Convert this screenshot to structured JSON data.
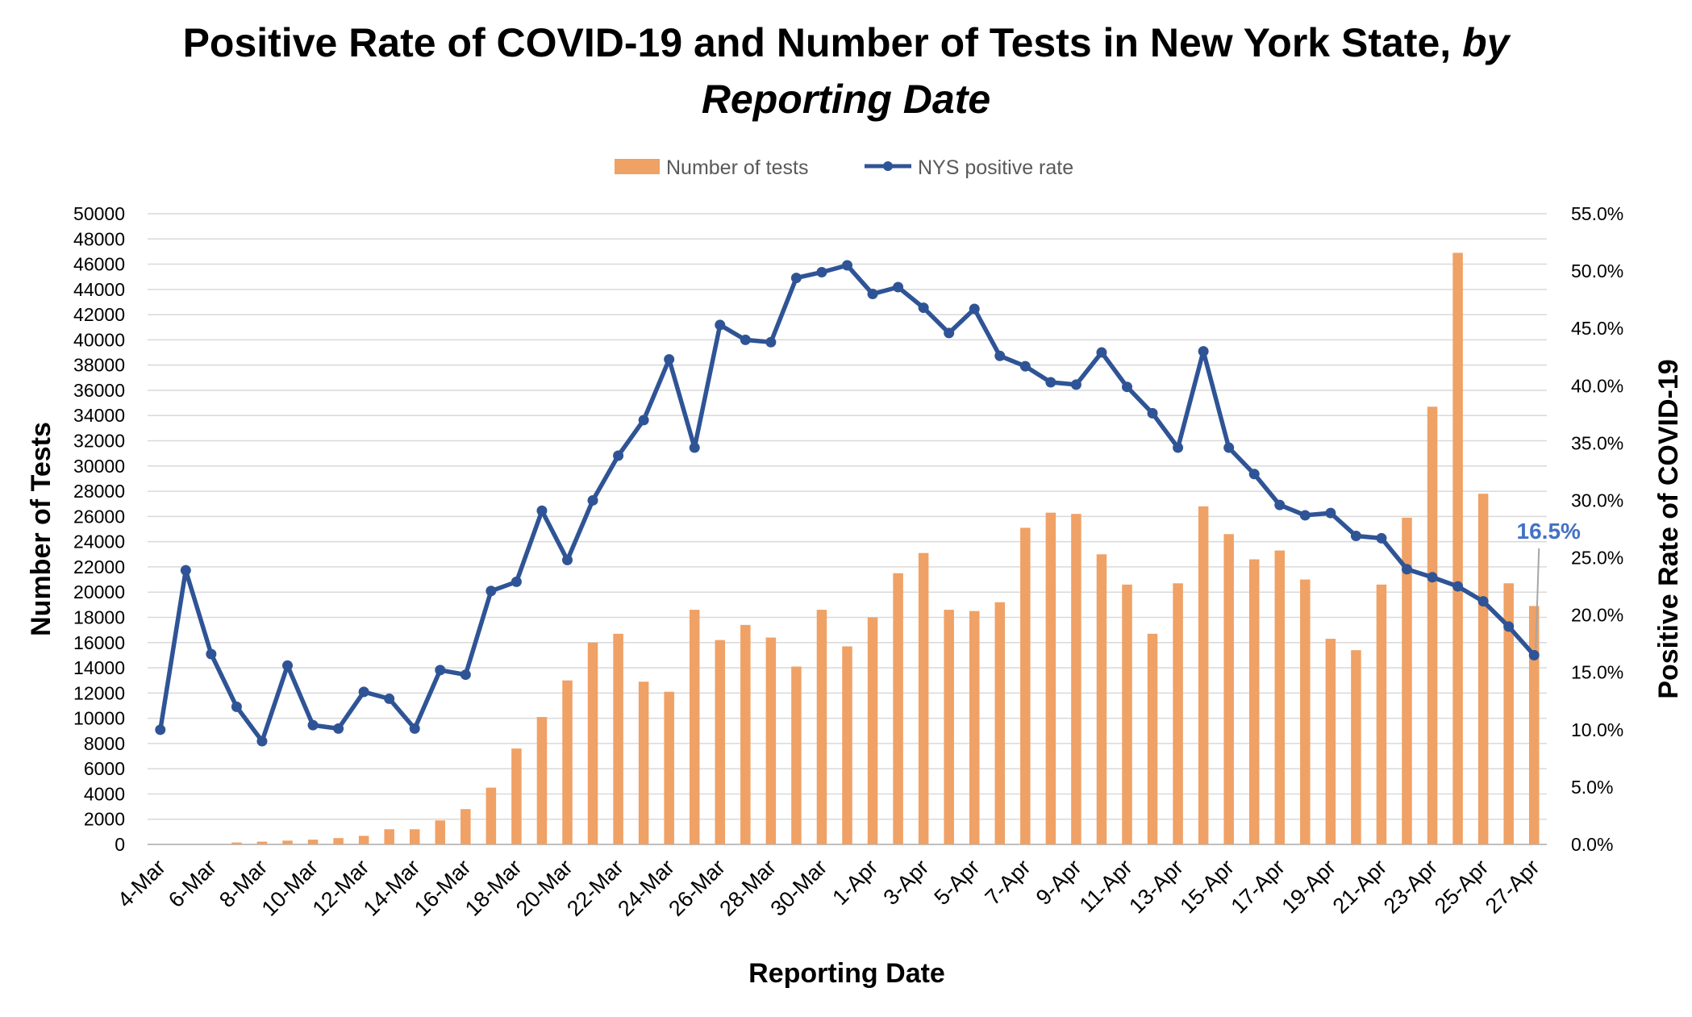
{
  "chart_data": {
    "type": "bar+line",
    "title_main": "Positive Rate of COVID-19 and Number of Tests in New York State,",
    "title_italic_1": "by",
    "title_italic_2": "Reporting Date",
    "xlabel": "Reporting Date",
    "ylabel_left": "Number of Tests",
    "ylabel_right": "Positive Rate of COVID-19",
    "ylim_left": [
      0,
      50000
    ],
    "ylim_right": [
      0,
      55
    ],
    "left_ticks": [
      "0",
      "2000",
      "4000",
      "6000",
      "8000",
      "10000",
      "12000",
      "14000",
      "16000",
      "18000",
      "20000",
      "22000",
      "24000",
      "26000",
      "28000",
      "30000",
      "32000",
      "34000",
      "36000",
      "38000",
      "40000",
      "42000",
      "44000",
      "46000",
      "48000",
      "50000"
    ],
    "right_ticks": [
      "0.0%",
      "5.0%",
      "10.0%",
      "15.0%",
      "20.0%",
      "25.0%",
      "30.0%",
      "35.0%",
      "40.0%",
      "45.0%",
      "50.0%",
      "55.0%"
    ],
    "categories": [
      "4-Mar",
      "5-Mar",
      "6-Mar",
      "7-Mar",
      "8-Mar",
      "9-Mar",
      "10-Mar",
      "11-Mar",
      "12-Mar",
      "13-Mar",
      "14-Mar",
      "15-Mar",
      "16-Mar",
      "17-Mar",
      "18-Mar",
      "19-Mar",
      "20-Mar",
      "21-Mar",
      "22-Mar",
      "23-Mar",
      "24-Mar",
      "25-Mar",
      "26-Mar",
      "27-Mar",
      "28-Mar",
      "29-Mar",
      "30-Mar",
      "31-Mar",
      "1-Apr",
      "2-Apr",
      "3-Apr",
      "4-Apr",
      "5-Apr",
      "6-Apr",
      "7-Apr",
      "8-Apr",
      "9-Apr",
      "10-Apr",
      "11-Apr",
      "12-Apr",
      "13-Apr",
      "14-Apr",
      "15-Apr",
      "16-Apr",
      "17-Apr",
      "18-Apr",
      "19-Apr",
      "20-Apr",
      "21-Apr",
      "22-Apr",
      "23-Apr",
      "24-Apr",
      "25-Apr",
      "26-Apr",
      "27-Apr"
    ],
    "x_tick_labels": [
      "4-Mar",
      "6-Mar",
      "8-Mar",
      "10-Mar",
      "12-Mar",
      "14-Mar",
      "16-Mar",
      "18-Mar",
      "20-Mar",
      "22-Mar",
      "24-Mar",
      "26-Mar",
      "28-Mar",
      "30-Mar",
      "1-Apr",
      "3-Apr",
      "5-Apr",
      "7-Apr",
      "9-Apr",
      "11-Apr",
      "13-Apr",
      "15-Apr",
      "17-Apr",
      "19-Apr",
      "21-Apr",
      "23-Apr",
      "25-Apr",
      "27-Apr"
    ],
    "series": [
      {
        "name": "Number of tests",
        "type": "bar",
        "axis": "left",
        "color": "#F0A165",
        "values": [
          0,
          0,
          0,
          150,
          220,
          300,
          380,
          500,
          680,
          1200,
          1200,
          1900,
          2800,
          4500,
          7600,
          10100,
          13000,
          16000,
          16700,
          12900,
          12100,
          18600,
          16200,
          17400,
          16400,
          14100,
          18600,
          15700,
          18000,
          21500,
          23100,
          18600,
          18500,
          19200,
          25100,
          26300,
          26200,
          23000,
          20600,
          16700,
          20700,
          26800,
          24600,
          22600,
          23300,
          21000,
          16300,
          15400,
          20600,
          25900,
          34700,
          46900,
          27800,
          20700,
          18900
        ]
      },
      {
        "name": "NYS positive rate",
        "type": "line",
        "axis": "right",
        "color": "#2F5496",
        "values": [
          10.0,
          23.9,
          16.6,
          12.0,
          9.0,
          15.6,
          10.4,
          10.1,
          13.3,
          12.7,
          10.1,
          15.2,
          14.8,
          22.1,
          22.9,
          29.1,
          24.8,
          30.0,
          33.9,
          37.0,
          42.3,
          34.6,
          45.3,
          44.0,
          43.8,
          49.4,
          49.9,
          50.5,
          48.0,
          48.6,
          46.8,
          44.6,
          46.7,
          42.6,
          41.7,
          40.3,
          40.1,
          42.9,
          39.9,
          37.6,
          34.6,
          43.0,
          34.6,
          32.3,
          29.6,
          28.7,
          28.9,
          26.9,
          26.7,
          24.0,
          23.3,
          22.5,
          21.2,
          19.0,
          16.5
        ]
      }
    ],
    "annotation": "16.5%"
  },
  "colors": {
    "bar": "#F0A165",
    "line": "#2F5496",
    "annotation": "#4472C4",
    "grid": "#D9D9D9",
    "axis_text": "#000000"
  }
}
